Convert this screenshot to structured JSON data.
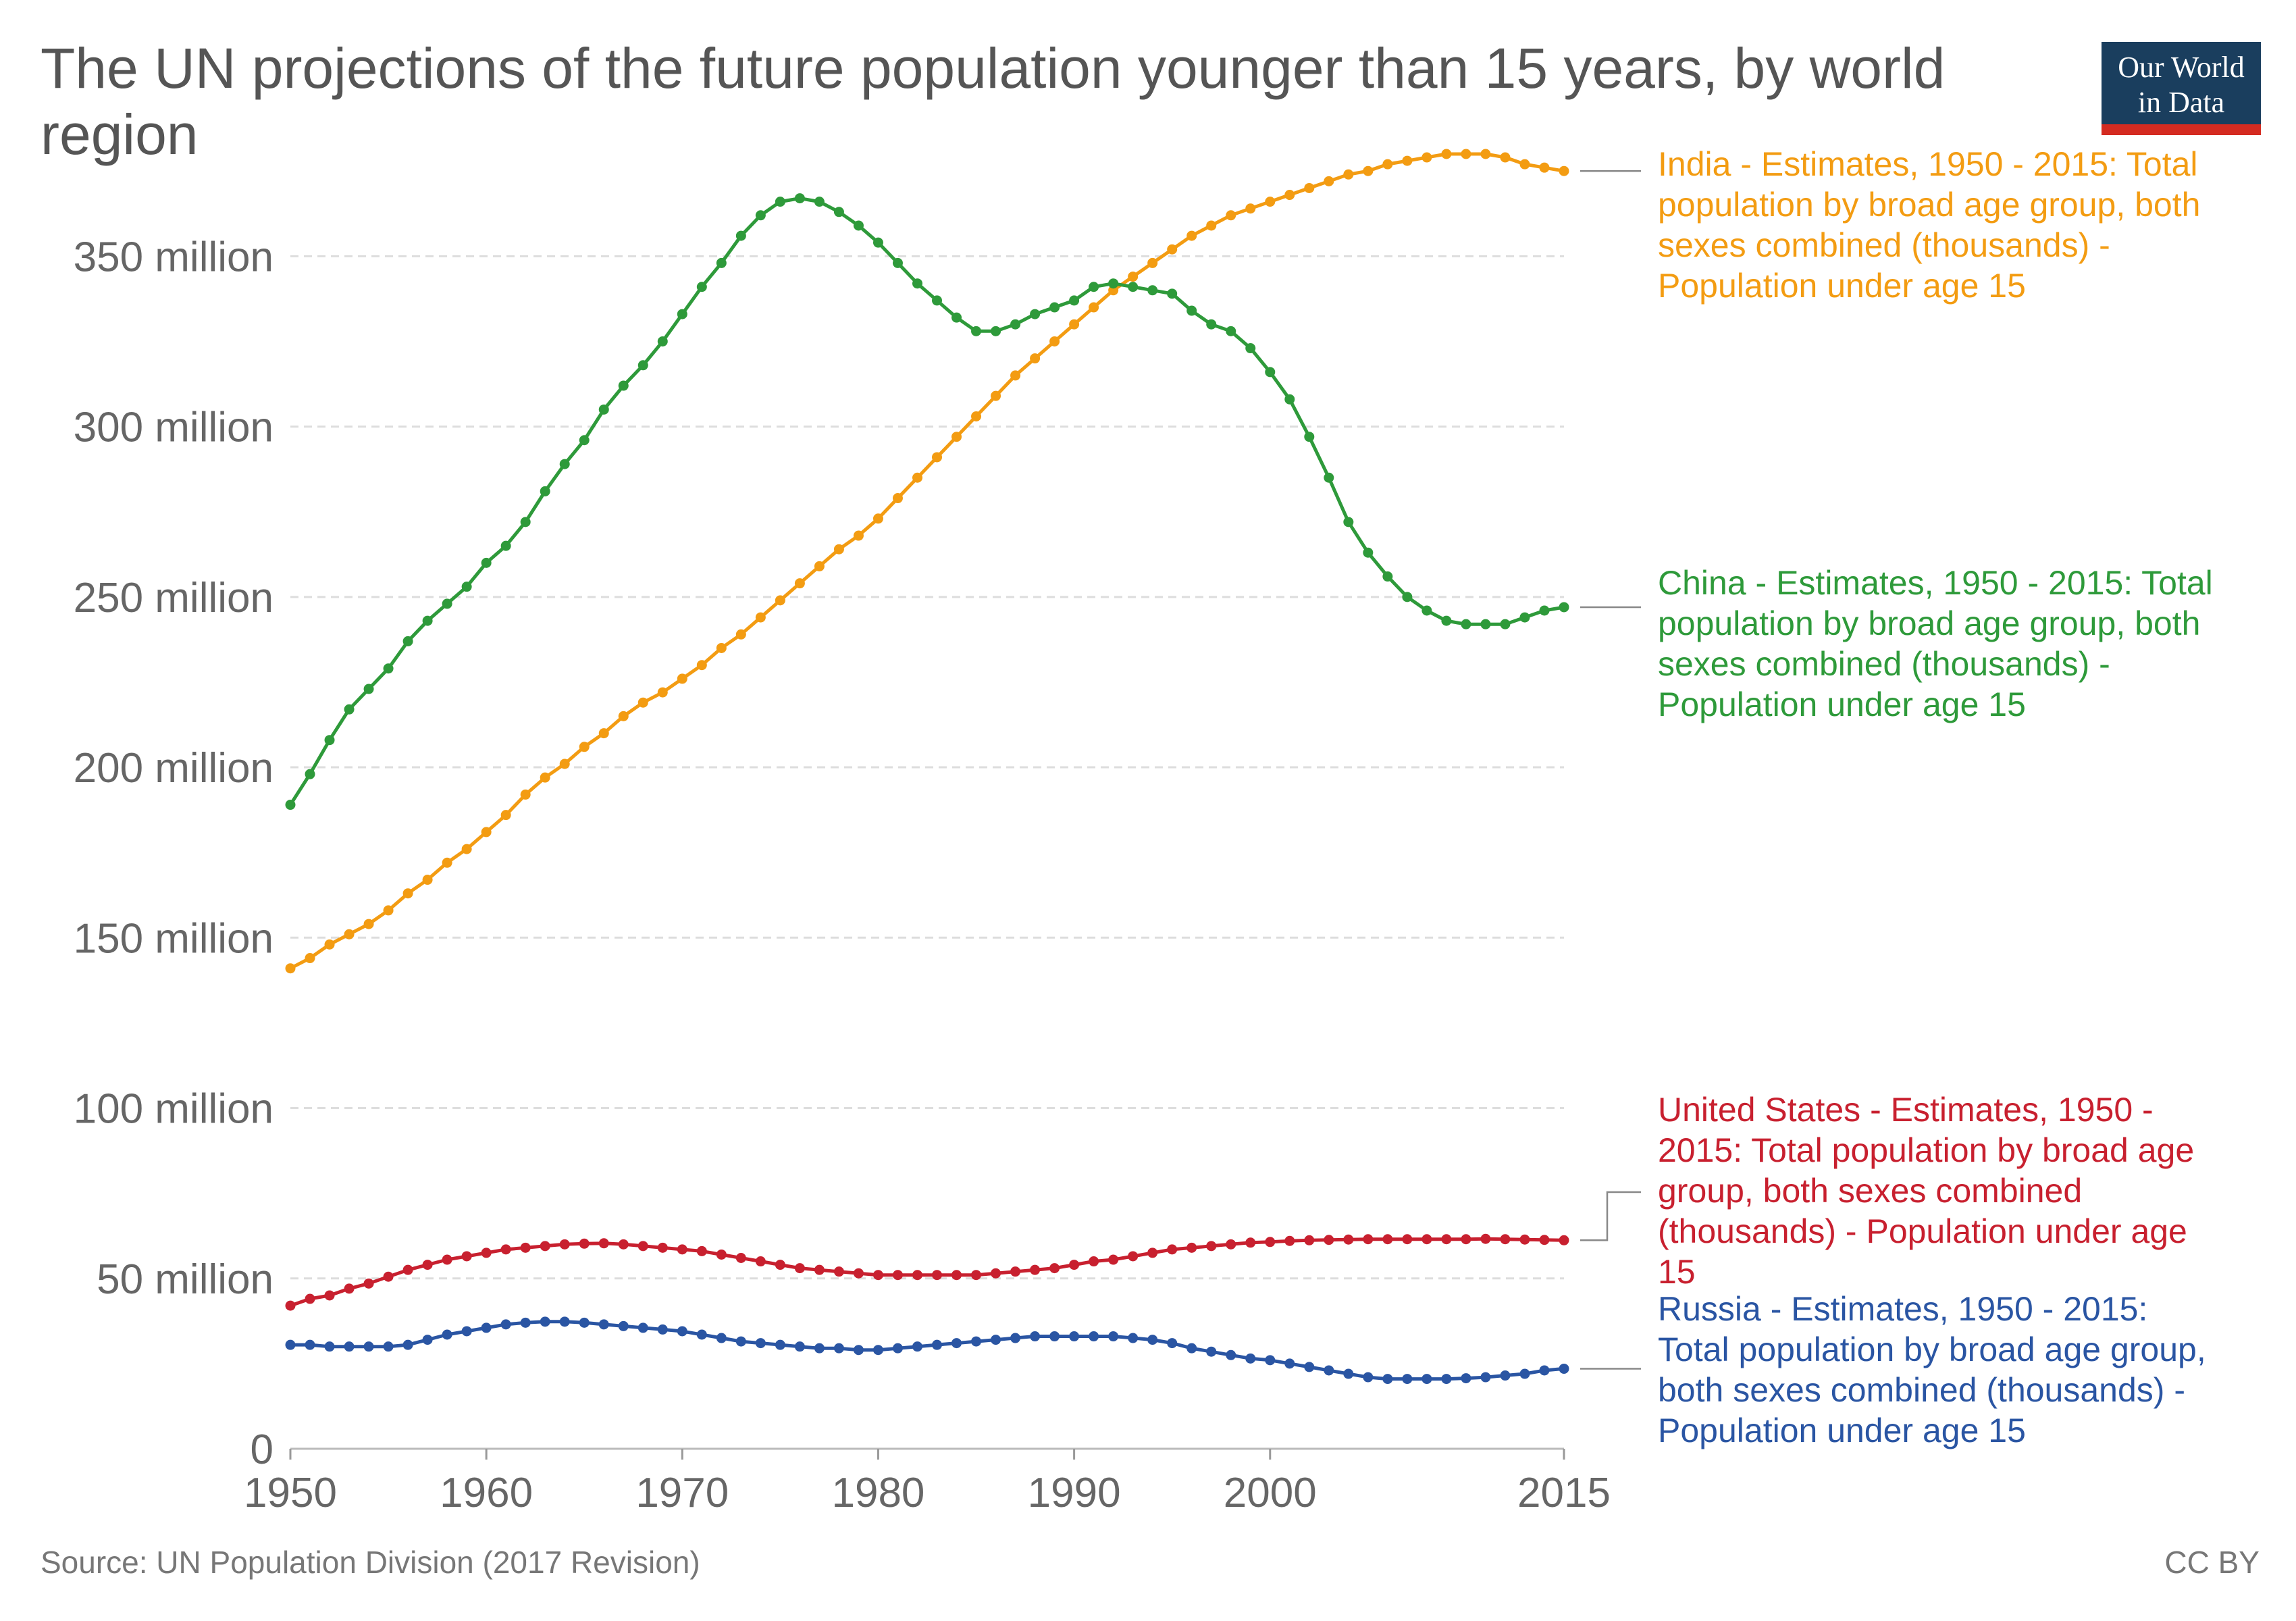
{
  "title": "The UN projections of the future population younger than 15 years, by world region",
  "logo": {
    "line1": "Our World",
    "line2": "in Data"
  },
  "footer": {
    "source": "Source: UN Population Division (2017 Revision)",
    "license": "CC BY"
  },
  "chart_data": {
    "type": "line",
    "title": "The UN projections of the future population younger than 15 years, by world region",
    "xlabel": "",
    "ylabel": "",
    "xlim": [
      1950,
      2015
    ],
    "ylim": [
      0,
      380
    ],
    "y_unit": "million",
    "grid": "horizontal dashed",
    "legend": "right, labels at line ends",
    "x_ticks": [
      "1950",
      "1960",
      "1970",
      "1980",
      "1990",
      "2000",
      "2015"
    ],
    "y_ticks": [
      {
        "value": 0,
        "label": "0"
      },
      {
        "value": 50,
        "label": "50 million"
      },
      {
        "value": 100,
        "label": "100 million"
      },
      {
        "value": 150,
        "label": "150 million"
      },
      {
        "value": 200,
        "label": "200 million"
      },
      {
        "value": 250,
        "label": "250 million"
      },
      {
        "value": 300,
        "label": "300 million"
      },
      {
        "value": 350,
        "label": "350 million"
      }
    ],
    "x": [
      1950,
      1951,
      1952,
      1953,
      1954,
      1955,
      1956,
      1957,
      1958,
      1959,
      1960,
      1961,
      1962,
      1963,
      1964,
      1965,
      1966,
      1967,
      1968,
      1969,
      1970,
      1971,
      1972,
      1973,
      1974,
      1975,
      1976,
      1977,
      1978,
      1979,
      1980,
      1981,
      1982,
      1983,
      1984,
      1985,
      1986,
      1987,
      1988,
      1989,
      1990,
      1991,
      1992,
      1993,
      1994,
      1995,
      1996,
      1997,
      1998,
      1999,
      2000,
      2001,
      2002,
      2003,
      2004,
      2005,
      2006,
      2007,
      2008,
      2009,
      2010,
      2011,
      2012,
      2013,
      2014,
      2015
    ],
    "series": [
      {
        "name": "India - Estimates, 1950 - 2015: Total population by broad age group, both sexes combined (thousands) - Population under age 15",
        "label_lines": [
          "India - Estimates, 1950 - 2015: Total",
          "population by broad age group, both",
          "sexes combined (thousands) -",
          "Population under age 15"
        ],
        "color": "#f39c12",
        "values": [
          141,
          144,
          148,
          151,
          154,
          158,
          163,
          167,
          172,
          176,
          181,
          186,
          192,
          197,
          201,
          206,
          210,
          215,
          219,
          222,
          226,
          230,
          235,
          239,
          244,
          249,
          254,
          259,
          264,
          268,
          273,
          279,
          285,
          291,
          297,
          303,
          309,
          315,
          320,
          325,
          330,
          335,
          340,
          344,
          348,
          352,
          356,
          359,
          362,
          364,
          366,
          368,
          370,
          372,
          374,
          375,
          377,
          378,
          379,
          380,
          380,
          380,
          379,
          377,
          376,
          375
        ]
      },
      {
        "name": "China - Estimates, 1950 - 2015: Total population by broad age group, both sexes combined (thousands) - Population under age 15",
        "label_lines": [
          "China - Estimates, 1950 - 2015: Total",
          "population by broad age group, both",
          "sexes combined (thousands) -",
          "Population under age 15"
        ],
        "color": "#2e9a3a",
        "values": [
          189,
          198,
          208,
          217,
          223,
          229,
          237,
          243,
          248,
          253,
          260,
          265,
          272,
          281,
          289,
          296,
          305,
          312,
          318,
          325,
          333,
          341,
          348,
          356,
          362,
          366,
          367,
          366,
          363,
          359,
          354,
          348,
          342,
          337,
          332,
          328,
          328,
          330,
          333,
          335,
          337,
          341,
          342,
          341,
          340,
          339,
          334,
          330,
          328,
          323,
          316,
          308,
          297,
          285,
          272,
          263,
          256,
          250,
          246,
          243,
          242,
          242,
          242,
          244,
          246,
          247
        ]
      },
      {
        "name": "United States - Estimates, 1950 - 2015: Total population by broad age group, both sexes combined (thousands) - Population under age 15",
        "label_lines": [
          "United States - Estimates, 1950 -",
          "2015: Total population by broad age",
          "group, both sexes combined",
          "(thousands) - Population under age",
          "15"
        ],
        "color": "#c8202f",
        "values": [
          42.0,
          44.0,
          45.0,
          47.0,
          48.5,
          50.5,
          52.5,
          54.0,
          55.5,
          56.5,
          57.5,
          58.5,
          59.0,
          59.5,
          60.0,
          60.2,
          60.3,
          60.0,
          59.5,
          59.0,
          58.5,
          58.0,
          57.0,
          56.0,
          55.0,
          54.0,
          53.0,
          52.5,
          52.0,
          51.5,
          51.0,
          51.0,
          51.0,
          51.0,
          51.0,
          51.0,
          51.5,
          52.0,
          52.5,
          53.0,
          54.0,
          55.0,
          55.5,
          56.5,
          57.5,
          58.5,
          59.0,
          59.5,
          60.0,
          60.5,
          60.7,
          61.0,
          61.2,
          61.3,
          61.4,
          61.5,
          61.5,
          61.5,
          61.5,
          61.5,
          61.5,
          61.6,
          61.5,
          61.4,
          61.3,
          61.2
        ]
      },
      {
        "name": "Russia - Estimates, 1950 - 2015: Total population by broad age group, both sexes combined (thousands) - Population under age 15",
        "label_lines": [
          "Russia - Estimates, 1950 - 2015:",
          "Total population by broad age group,",
          "both sexes combined (thousands) -",
          "Population under age 15"
        ],
        "color": "#2a55a3",
        "values": [
          30.5,
          30.5,
          30.0,
          30.0,
          30.0,
          30.0,
          30.5,
          32.0,
          33.5,
          34.5,
          35.5,
          36.5,
          37.0,
          37.3,
          37.3,
          37.0,
          36.5,
          36.0,
          35.5,
          35.0,
          34.5,
          33.5,
          32.5,
          31.5,
          31.0,
          30.5,
          30.0,
          29.5,
          29.5,
          29.0,
          29.0,
          29.5,
          30.0,
          30.5,
          31.0,
          31.5,
          32.0,
          32.5,
          33.0,
          33.0,
          33.0,
          33.0,
          33.0,
          32.5,
          32.0,
          31.0,
          29.5,
          28.5,
          27.5,
          26.5,
          26.0,
          25.0,
          24.0,
          23.0,
          22.0,
          21.0,
          20.5,
          20.5,
          20.5,
          20.5,
          20.7,
          21.0,
          21.5,
          22.0,
          23.0,
          23.5
        ]
      }
    ]
  }
}
